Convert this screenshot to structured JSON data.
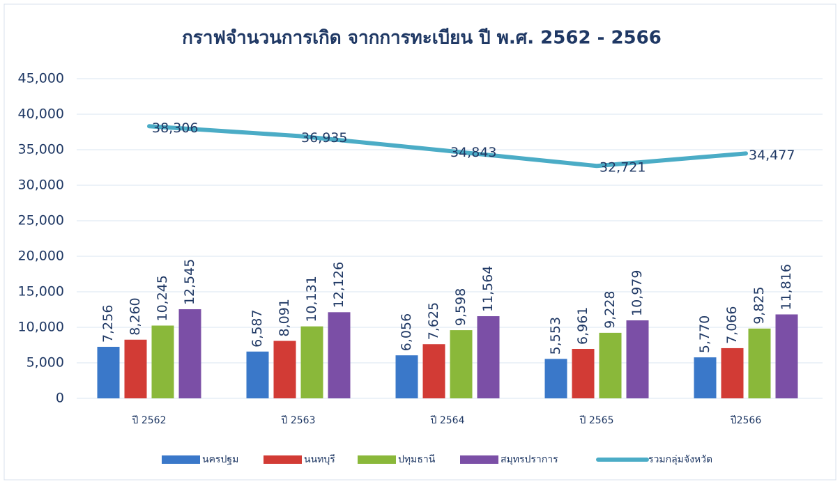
{
  "chart_data": {
    "type": "bar",
    "title": "กราฟจำนวนการเกิด จากการทะเบียน ปี พ.ศ. 2562 - 2566",
    "categories": [
      "ปี 2562",
      "ปี 2563",
      "ปี 2564",
      "ปี 2565",
      "ปี2566"
    ],
    "series": [
      {
        "name": "นครปฐม",
        "color": "#3a78c9",
        "values": [
          7256,
          6587,
          6056,
          5553,
          5770
        ],
        "value_labels": [
          "7,256",
          "6,587",
          "6,056",
          "5,553",
          "5,770"
        ]
      },
      {
        "name": "นนทบุรี",
        "color": "#d23b35",
        "values": [
          8260,
          8091,
          7625,
          6961,
          7066
        ],
        "value_labels": [
          "8,260",
          "8,091",
          "7,625",
          "6,961",
          "7,066"
        ]
      },
      {
        "name": "ปทุมธานี",
        "color": "#8ab83a",
        "values": [
          10245,
          10131,
          9598,
          9228,
          9825
        ],
        "value_labels": [
          "10,245",
          "10,131",
          "9,598",
          "9,228",
          "9,825"
        ]
      },
      {
        "name": "สมุทรปราการ",
        "color": "#7b4fa6",
        "values": [
          12545,
          12126,
          11564,
          10979,
          11816
        ],
        "value_labels": [
          "12,545",
          "12,126",
          "11,564",
          "10,979",
          "11,816"
        ]
      },
      {
        "name": "รวมกลุ่มจังหวัด",
        "type": "line",
        "color": "#4bacc6",
        "values": [
          38306,
          36935,
          34843,
          32721,
          34477
        ],
        "value_labels": [
          "38,306",
          "36,935",
          "34,843",
          "32,721",
          "34,477"
        ]
      }
    ],
    "ylim": [
      0,
      45000
    ],
    "yticks": [
      0,
      {
        "value": 5000,
        "label": "5,000"
      },
      {
        "value": 10000,
        "label": "10,000"
      },
      {
        "value": 15000,
        "label": "15,000"
      },
      {
        "value": 20000,
        "label": "20,000"
      },
      {
        "value": 25000,
        "label": "25,000"
      },
      {
        "value": 30000,
        "label": "30,000"
      },
      {
        "value": 35000,
        "label": "35,000"
      },
      {
        "value": 40000,
        "label": "40,000"
      },
      {
        "value": 45000,
        "label": "45,000"
      }
    ],
    "grid": true,
    "legend": "bottom"
  }
}
